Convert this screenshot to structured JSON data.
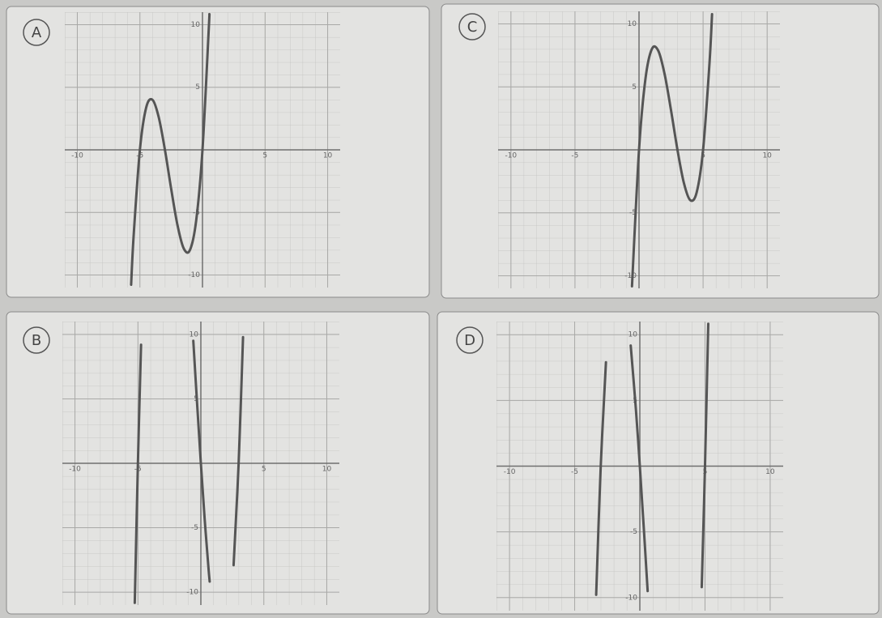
{
  "chart_data": [
    {
      "type": "line",
      "title": "A",
      "x": [
        -5.7,
        -5.5,
        -5,
        -4.5,
        -4,
        -3.5,
        -3,
        -2.5,
        -2,
        -1.5,
        -1,
        -0.5,
        0,
        0.5,
        0.55
      ],
      "series": [
        {
          "color": "#555555",
          "values": [
            -10.773,
            -6.875,
            0,
            3.375,
            4,
            2.625,
            0,
            -3.125,
            -6,
            -7.875,
            -8,
            -5.625,
            0,
            9.625,
            10.837
          ]
        }
      ],
      "xlim": [
        -11,
        11
      ],
      "ylim": [
        -11,
        11
      ],
      "xticks": [
        -10,
        -5,
        5,
        10
      ],
      "yticks": [
        10,
        5,
        -5,
        -10
      ],
      "grid": true
    },
    {
      "type": "line",
      "title": "C",
      "x": [
        -0.55,
        0,
        0.5,
        1,
        1.5,
        2,
        2.5,
        3,
        3.5,
        4,
        4.5,
        5,
        5.5,
        5.7
      ],
      "series": [
        {
          "color": "#555555",
          "values": [
            -10.837,
            0,
            5.625,
            8,
            7.875,
            6,
            3.125,
            0,
            -2.625,
            -4,
            -3.375,
            0,
            6.875,
            10.773
          ]
        }
      ],
      "xlim": [
        -11,
        11
      ],
      "ylim": [
        -11,
        11
      ],
      "xticks": [
        -10,
        -5,
        5,
        10
      ],
      "yticks": [
        10,
        5,
        -5,
        -10
      ],
      "grid": true
    },
    {
      "type": "line",
      "title": "B",
      "x": [
        -5.25,
        -5,
        -4.75,
        -2.5,
        -0.6,
        -0.3,
        0,
        0.3,
        0.6,
        0.7,
        1.5,
        2.6,
        3,
        3.35
      ],
      "series": [
        {
          "color": "#555555",
          "values": [
            -10.83,
            0,
            9.203,
            null,
            9.504,
            4.653,
            0,
            -4.293,
            -8.064,
            -9.177,
            null,
            -7.904,
            0,
            9.79
          ]
        }
      ],
      "xlim": [
        -11,
        11
      ],
      "ylim": [
        -11,
        11
      ],
      "xticks": [
        -10,
        -5,
        5,
        10
      ],
      "yticks": [
        10,
        5,
        -5,
        -10
      ],
      "grid": true
    },
    {
      "type": "line",
      "title": "D",
      "x": [
        -3.35,
        -3,
        -2.6,
        -1.5,
        -0.7,
        -0.3,
        0,
        0.3,
        0.6,
        2.5,
        4.75,
        5,
        5.25
      ],
      "series": [
        {
          "color": "#555555",
          "values": [
            -9.79,
            0,
            7.904,
            null,
            9.177,
            4.293,
            0,
            -4.653,
            -9.504,
            null,
            -9.203,
            0,
            10.828
          ]
        }
      ],
      "xlim": [
        -11,
        11
      ],
      "ylim": [
        -11,
        11
      ],
      "xticks": [
        -10,
        -5,
        5,
        10
      ],
      "yticks": [
        10,
        5,
        -5,
        -10
      ],
      "grid": true
    }
  ]
}
